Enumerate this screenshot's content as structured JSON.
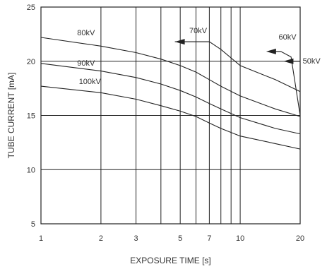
{
  "chart_data": {
    "type": "line",
    "xlabel": "EXPOSURE TIME [s]",
    "ylabel": "TUBE CURRENT [mA]",
    "x_scale": "log",
    "xlim": [
      1,
      20
    ],
    "ylim": [
      5,
      25
    ],
    "x_ticks": [
      1,
      2,
      3,
      5,
      7,
      10,
      20
    ],
    "x_gridlines": [
      2,
      3,
      4,
      5,
      6,
      7,
      8,
      9,
      10
    ],
    "y_ticks": [
      5,
      10,
      15,
      20,
      25
    ],
    "grid": true,
    "series": [
      {
        "name": "80kV",
        "x": [
          1,
          2,
          3,
          4,
          5,
          6,
          7,
          8,
          10,
          15,
          20
        ],
        "y": [
          22.2,
          21.4,
          20.8,
          20.2,
          19.6,
          19.0,
          18.3,
          17.7,
          16.8,
          15.6,
          14.9
        ]
      },
      {
        "name": "90kV",
        "x": [
          1,
          2,
          3,
          4,
          5,
          6,
          7,
          8,
          10,
          15,
          20
        ],
        "y": [
          19.8,
          19.1,
          18.5,
          17.9,
          17.3,
          16.7,
          16.1,
          15.6,
          14.8,
          13.8,
          13.3
        ]
      },
      {
        "name": "100kV",
        "x": [
          1,
          2,
          3,
          4,
          5,
          6,
          7,
          8,
          10,
          15,
          20
        ],
        "y": [
          17.7,
          17.1,
          16.5,
          15.9,
          15.4,
          14.9,
          14.3,
          13.8,
          13.1,
          12.4,
          11.9
        ]
      },
      {
        "name": "70kV",
        "x": [
          4.7,
          7.0,
          8.0,
          10,
          15,
          20
        ],
        "y": [
          21.8,
          21.8,
          21.1,
          19.6,
          18.3,
          17.2
        ]
      },
      {
        "name": "60kV",
        "x": [
          15,
          16,
          18,
          20
        ],
        "y": [
          20.9,
          20.9,
          20.4,
          15.0
        ]
      },
      {
        "name": "50kV",
        "x": [
          20
        ],
        "y": [
          20.0
        ]
      }
    ],
    "annotations": [
      {
        "text": "80kV",
        "x": 1.52,
        "y": 22.4
      },
      {
        "text": "90kV",
        "x": 1.52,
        "y": 19.6
      },
      {
        "text": "100kV",
        "x": 1.55,
        "y": 17.9
      },
      {
        "text": "70kV",
        "x": 5.55,
        "y": 22.6
      },
      {
        "text": "60kV",
        "x": 15.6,
        "y": 22.0
      },
      {
        "text": "50kV",
        "x": 20.6,
        "y": 19.8
      }
    ],
    "arrows": [
      {
        "label": "70kV",
        "from": [
          7.0,
          21.8
        ],
        "to": [
          4.7,
          21.8
        ]
      },
      {
        "label": "60kV",
        "from": [
          16.0,
          20.9
        ],
        "to": [
          13.5,
          20.9
        ]
      },
      {
        "label": "50kV",
        "from": [
          20.0,
          20.0
        ],
        "to": [
          16.5,
          20.0
        ]
      }
    ]
  }
}
